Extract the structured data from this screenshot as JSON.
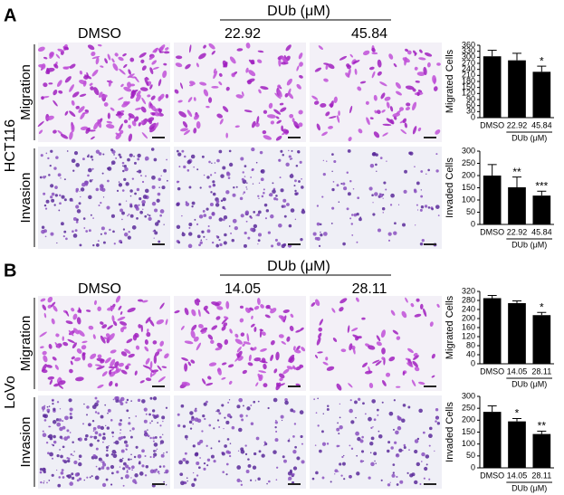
{
  "panels": [
    {
      "label": "A",
      "cell_line": "HCT116",
      "group_label": "DUb (μM)",
      "columns": [
        "DMSO",
        "22.92",
        "45.84"
      ],
      "rows": [
        "Migration",
        "Invasion"
      ]
    },
    {
      "label": "B",
      "cell_line": "LoVo",
      "group_label": "DUb (μM)",
      "columns": [
        "DMSO",
        "14.05",
        "28.11"
      ],
      "rows": [
        "Migration",
        "Invasion"
      ]
    }
  ],
  "chart_data": [
    {
      "type": "bar",
      "y_label": "Migrated Cells",
      "x_label": "DUb (μM)",
      "categories": [
        "DMSO",
        "22.92",
        "45.84"
      ],
      "values": [
        305,
        285,
        228
      ],
      "errors": [
        30,
        35,
        28
      ],
      "annotations": [
        null,
        null,
        "*"
      ],
      "color": "#000000",
      "ylim": [
        0,
        360
      ],
      "yticks": [
        0,
        30,
        60,
        90,
        120,
        150,
        180,
        210,
        240,
        270,
        300,
        330,
        360
      ]
    },
    {
      "type": "bar",
      "y_label": "Invaded Cells",
      "x_label": "DUb (μM)",
      "categories": [
        "DMSO",
        "22.92",
        "45.84"
      ],
      "values": [
        200,
        152,
        118
      ],
      "errors": [
        45,
        42,
        18
      ],
      "annotations": [
        null,
        "**",
        "***"
      ],
      "color": "#000000",
      "ylim": [
        0,
        300
      ],
      "yticks": [
        0,
        50,
        100,
        150,
        200,
        250,
        300
      ]
    },
    {
      "type": "bar",
      "y_label": "Migrated Cells",
      "x_label": "DUb (μM)",
      "categories": [
        "DMSO",
        "14.05",
        "28.11"
      ],
      "values": [
        290,
        268,
        215
      ],
      "errors": [
        12,
        10,
        12
      ],
      "annotations": [
        null,
        null,
        "*"
      ],
      "color": "#000000",
      "ylim": [
        0,
        320
      ],
      "yticks": [
        0,
        40,
        80,
        120,
        160,
        200,
        240,
        280,
        320
      ]
    },
    {
      "type": "bar",
      "y_label": "Invaded Cells",
      "x_label": "DUb (μM)",
      "categories": [
        "DMSO",
        "14.05",
        "28.11"
      ],
      "values": [
        235,
        195,
        142
      ],
      "errors": [
        25,
        12,
        12
      ],
      "annotations": [
        null,
        "*",
        "**"
      ],
      "color": "#000000",
      "ylim": [
        0,
        300
      ],
      "yticks": [
        0,
        50,
        100,
        150,
        200,
        250,
        300
      ]
    }
  ]
}
